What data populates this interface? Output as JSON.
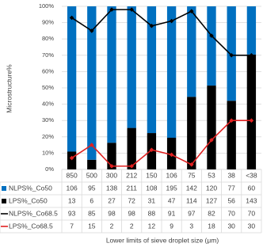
{
  "chart_data": {
    "type": "bar",
    "stacked": "percent",
    "grid": true,
    "y_label": "Microstructure%",
    "x_label": "Lower limits of sieve droplet size (μm)",
    "categories": [
      "850",
      "500",
      "300",
      "212",
      "150",
      "106",
      "75",
      "53",
      "38",
      "<38"
    ],
    "ylim": [
      0,
      100
    ],
    "yticks": [
      {
        "value": 0,
        "label": "0%"
      },
      {
        "value": 10,
        "label": "10%"
      },
      {
        "value": 20,
        "label": "20%"
      },
      {
        "value": 30,
        "label": "30%"
      },
      {
        "value": 40,
        "label": "40%"
      },
      {
        "value": 50,
        "label": "50%"
      },
      {
        "value": 60,
        "label": "60%"
      },
      {
        "value": 70,
        "label": "70%"
      },
      {
        "value": 80,
        "label": "80%"
      },
      {
        "value": 90,
        "label": "90%"
      },
      {
        "value": 100,
        "label": "100%"
      }
    ],
    "series": [
      {
        "name": "NLPS%_Co50",
        "type": "bar",
        "color": "#0070c0",
        "values": [
          106,
          95,
          138,
          211,
          108,
          195,
          142,
          120,
          77,
          60
        ]
      },
      {
        "name": "LPS%_Co50",
        "type": "bar",
        "color": "#000000",
        "values": [
          13,
          6,
          27,
          72,
          31,
          47,
          114,
          127,
          56,
          143
        ]
      },
      {
        "name": "NLPS%_Co68.5",
        "type": "line",
        "color": "#000000",
        "values": [
          93,
          85,
          98,
          98,
          88,
          91,
          97,
          82,
          70,
          70
        ]
      },
      {
        "name": "LPS%_Co68.5",
        "type": "line",
        "color": "#e02020",
        "values": [
          7,
          15,
          2,
          2,
          12,
          9,
          3,
          18,
          30,
          30
        ]
      }
    ]
  }
}
